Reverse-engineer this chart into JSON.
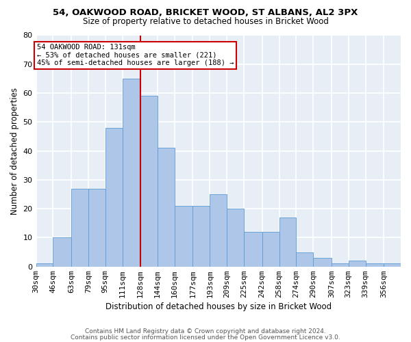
{
  "title1": "54, OAKWOOD ROAD, BRICKET WOOD, ST ALBANS, AL2 3PX",
  "title2": "Size of property relative to detached houses in Bricket Wood",
  "xlabel": "Distribution of detached houses by size in Bricket Wood",
  "ylabel": "Number of detached properties",
  "footnote1": "Contains HM Land Registry data © Crown copyright and database right 2024.",
  "footnote2": "Contains public sector information licensed under the Open Government Licence v3.0.",
  "bar_labels": [
    "30sqm",
    "46sqm",
    "63sqm",
    "79sqm",
    "95sqm",
    "111sqm",
    "128sqm",
    "144sqm",
    "160sqm",
    "177sqm",
    "193sqm",
    "209sqm",
    "225sqm",
    "242sqm",
    "258sqm",
    "274sqm",
    "290sqm",
    "307sqm",
    "323sqm",
    "339sqm",
    "356sqm"
  ],
  "bar_values": [
    1,
    10,
    27,
    27,
    48,
    65,
    59,
    41,
    21,
    21,
    25,
    20,
    12,
    12,
    17,
    5,
    3,
    1,
    2,
    1,
    1
  ],
  "bar_color": "#aec6e8",
  "bar_edgecolor": "#5b9bd5",
  "background_color": "#e8eef5",
  "grid_color": "#ffffff",
  "annotation_line1": "54 OAKWOOD ROAD: 131sqm",
  "annotation_line2": "← 53% of detached houses are smaller (221)",
  "annotation_line3": "45% of semi-detached houses are larger (188) →",
  "annotation_box_edgecolor": "#cc0000",
  "vline_color": "#cc0000",
  "bin_edges": [
    30,
    46,
    63,
    79,
    95,
    111,
    128,
    144,
    160,
    177,
    193,
    209,
    225,
    242,
    258,
    274,
    290,
    307,
    323,
    339,
    356,
    372
  ],
  "vline_x_bin_index": 6,
  "ylim": [
    0,
    80
  ],
  "yticks": [
    0,
    10,
    20,
    30,
    40,
    50,
    60,
    70,
    80
  ],
  "title1_fontsize": 9.5,
  "title2_fontsize": 8.5,
  "xlabel_fontsize": 8.5,
  "ylabel_fontsize": 8.5,
  "tick_fontsize": 8,
  "footnote_fontsize": 6.5
}
